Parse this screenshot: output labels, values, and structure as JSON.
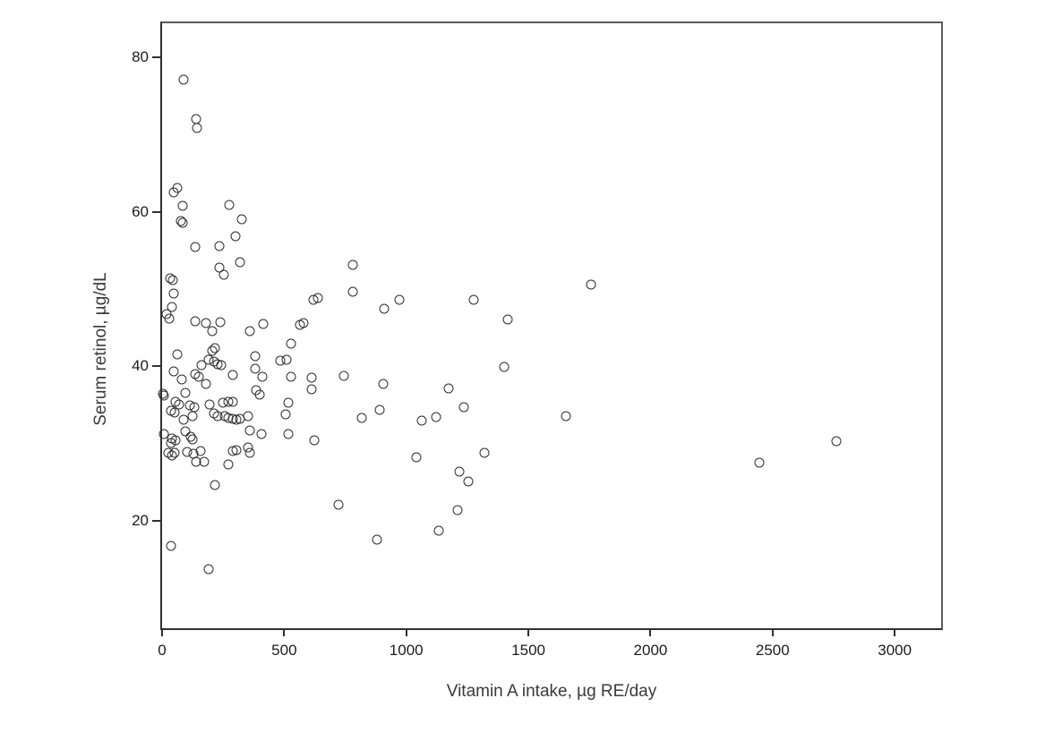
{
  "figure": {
    "background_color": "#ffffff",
    "frame_color": "#5a5a5a",
    "axis_color": "#303030",
    "text_color": "#1c1c1c"
  },
  "chart_data": {
    "type": "scatter",
    "title": "",
    "xlabel": "Vitamin A intake, µg RE/day",
    "ylabel": "Serum retinol, µg/dL",
    "x_ticks": [
      0,
      500,
      1000,
      1500,
      2000,
      2500,
      3000
    ],
    "y_ticks": [
      20,
      40,
      60,
      80
    ],
    "xlim": [
      0,
      3190
    ],
    "ylim": [
      6.1,
      84.4
    ],
    "grid": false,
    "legend_position": "none",
    "marker": "open-circle",
    "marker_color": "#2d2d2d",
    "points": [
      [
        88,
        77.1
      ],
      [
        139,
        72.0
      ],
      [
        143,
        70.9
      ],
      [
        62,
        63.1
      ],
      [
        48,
        62.5
      ],
      [
        84,
        60.8
      ],
      [
        77,
        58.8
      ],
      [
        84,
        58.6
      ],
      [
        136,
        55.4
      ],
      [
        275,
        60.9
      ],
      [
        326,
        59.0
      ],
      [
        301,
        56.8
      ],
      [
        235,
        55.6
      ],
      [
        235,
        52.8
      ],
      [
        253,
        51.9
      ],
      [
        319,
        53.5
      ],
      [
        781,
        53.1
      ],
      [
        781,
        49.6
      ],
      [
        33,
        51.4
      ],
      [
        44,
        51.1
      ],
      [
        48,
        49.4
      ],
      [
        40,
        47.7
      ],
      [
        18,
        46.8
      ],
      [
        29,
        46.2
      ],
      [
        136,
        45.8
      ],
      [
        180,
        45.6
      ],
      [
        238,
        45.7
      ],
      [
        205,
        44.6
      ],
      [
        359,
        44.6
      ],
      [
        414,
        45.5
      ],
      [
        564,
        45.4
      ],
      [
        579,
        45.6
      ],
      [
        619,
        48.6
      ],
      [
        638,
        48.8
      ],
      [
        909,
        47.4
      ],
      [
        971,
        48.6
      ],
      [
        1275,
        48.6
      ],
      [
        1415,
        46.1
      ],
      [
        1756,
        50.6
      ],
      [
        1400,
        39.9
      ],
      [
        528,
        42.9
      ],
      [
        216,
        42.3
      ],
      [
        205,
        42.0
      ],
      [
        62,
        41.5
      ],
      [
        381,
        41.3
      ],
      [
        484,
        40.7
      ],
      [
        509,
        40.9
      ],
      [
        191,
        40.8
      ],
      [
        161,
        40.2
      ],
      [
        213,
        40.6
      ],
      [
        227,
        40.3
      ],
      [
        242,
        40.1
      ],
      [
        381,
        39.7
      ],
      [
        411,
        38.7
      ],
      [
        48,
        39.4
      ],
      [
        81,
        38.3
      ],
      [
        136,
        39.0
      ],
      [
        150,
        38.7
      ],
      [
        290,
        38.9
      ],
      [
        180,
        37.7
      ],
      [
        528,
        38.7
      ],
      [
        612,
        38.5
      ],
      [
        612,
        37.0
      ],
      [
        95,
        36.6
      ],
      [
        2,
        36.5
      ],
      [
        9,
        36.2
      ],
      [
        744,
        38.8
      ],
      [
        905,
        37.7
      ],
      [
        385,
        36.9
      ],
      [
        399,
        36.3
      ],
      [
        55,
        35.4
      ],
      [
        70,
        35.0
      ],
      [
        114,
        34.9
      ],
      [
        132,
        34.7
      ],
      [
        37,
        34.3
      ],
      [
        51,
        34.0
      ],
      [
        194,
        35.0
      ],
      [
        213,
        33.9
      ],
      [
        227,
        33.6
      ],
      [
        249,
        35.3
      ],
      [
        271,
        35.4
      ],
      [
        290,
        35.4
      ],
      [
        257,
        33.5
      ],
      [
        271,
        33.3
      ],
      [
        290,
        33.2
      ],
      [
        304,
        33.1
      ],
      [
        319,
        33.2
      ],
      [
        352,
        33.5
      ],
      [
        88,
        33.1
      ],
      [
        125,
        33.6
      ],
      [
        517,
        35.3
      ],
      [
        506,
        33.8
      ],
      [
        817,
        33.3
      ],
      [
        891,
        34.4
      ],
      [
        1063,
        33.0
      ],
      [
        1122,
        33.4
      ],
      [
        1173,
        37.1
      ],
      [
        1235,
        34.7
      ],
      [
        1653,
        33.6
      ],
      [
        359,
        31.7
      ],
      [
        407,
        31.2
      ],
      [
        95,
        31.6
      ],
      [
        117,
        30.9
      ],
      [
        125,
        30.5
      ],
      [
        40,
        30.7
      ],
      [
        55,
        30.4
      ],
      [
        7,
        31.2
      ],
      [
        26,
        28.8
      ],
      [
        40,
        28.4
      ],
      [
        51,
        28.8
      ],
      [
        37,
        30.1
      ],
      [
        103,
        28.9
      ],
      [
        128,
        28.7
      ],
      [
        158,
        29.0
      ],
      [
        139,
        27.6
      ],
      [
        172,
        27.7
      ],
      [
        271,
        27.3
      ],
      [
        290,
        29.0
      ],
      [
        352,
        29.5
      ],
      [
        359,
        28.8
      ],
      [
        304,
        29.2
      ],
      [
        517,
        31.2
      ],
      [
        623,
        30.4
      ],
      [
        1041,
        28.2
      ],
      [
        1320,
        28.8
      ],
      [
        2445,
        27.5
      ],
      [
        2760,
        30.3
      ],
      [
        216,
        24.6
      ],
      [
        1217,
        26.4
      ],
      [
        1253,
        25.1
      ],
      [
        722,
        22.1
      ],
      [
        1210,
        21.4
      ],
      [
        880,
        17.6
      ],
      [
        1133,
        18.7
      ],
      [
        37,
        16.8
      ],
      [
        191,
        13.8
      ]
    ]
  }
}
